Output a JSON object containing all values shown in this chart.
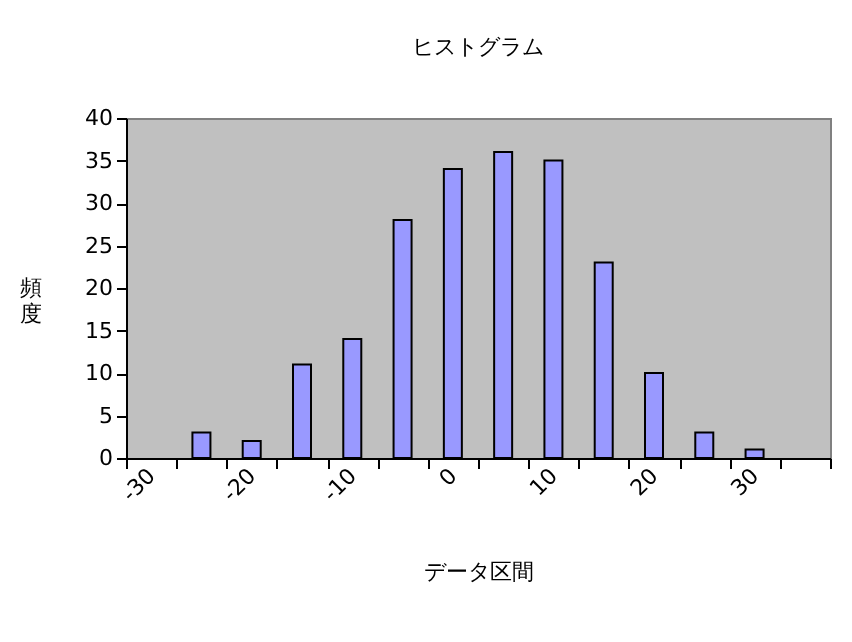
{
  "chart_data": {
    "type": "bar",
    "title": "ヒストグラム",
    "xlabel": "データ区間",
    "ylabel": "頻度",
    "categories": [
      "-30",
      null,
      "-20",
      null,
      "-10",
      null,
      "0",
      null,
      "10",
      null,
      "20",
      null,
      "30",
      null
    ],
    "values": [
      null,
      3,
      2,
      11,
      14,
      28,
      34,
      36,
      35,
      23,
      10,
      3,
      1,
      null
    ],
    "color": "#9999ff",
    "ylim": [
      0,
      40
    ],
    "yticks": [
      0,
      5,
      10,
      15,
      20,
      25,
      30,
      35,
      40
    ],
    "grid": false
  }
}
